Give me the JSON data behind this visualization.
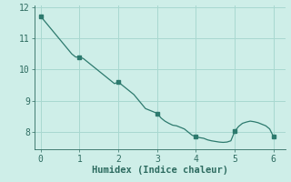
{
  "title": "",
  "xlabel": "Humidex (Indice chaleur)",
  "ylabel": "",
  "background_color": "#ceeee8",
  "line_color": "#2d7a6e",
  "grid_color": "#a8d8d0",
  "x": [
    0,
    0.1,
    0.2,
    0.3,
    0.4,
    0.5,
    0.6,
    0.7,
    0.8,
    0.9,
    1.0,
    1.1,
    1.2,
    1.3,
    1.4,
    1.5,
    1.6,
    1.7,
    1.8,
    1.9,
    2.0,
    2.1,
    2.2,
    2.3,
    2.4,
    2.5,
    2.6,
    2.7,
    2.8,
    2.9,
    3.0,
    3.1,
    3.2,
    3.3,
    3.4,
    3.5,
    3.6,
    3.7,
    3.8,
    3.9,
    4.0,
    4.1,
    4.2,
    4.3,
    4.4,
    4.5,
    4.6,
    4.7,
    4.8,
    4.9,
    5.0,
    5.1,
    5.2,
    5.3,
    5.4,
    5.5,
    5.6,
    5.7,
    5.8,
    5.9,
    6.0
  ],
  "y": [
    11.7,
    11.55,
    11.4,
    11.25,
    11.1,
    10.95,
    10.8,
    10.65,
    10.5,
    10.4,
    10.4,
    10.35,
    10.25,
    10.15,
    10.05,
    9.95,
    9.85,
    9.75,
    9.65,
    9.55,
    9.6,
    9.5,
    9.4,
    9.3,
    9.2,
    9.05,
    8.9,
    8.75,
    8.7,
    8.65,
    8.6,
    8.45,
    8.35,
    8.28,
    8.22,
    8.2,
    8.15,
    8.1,
    8.0,
    7.9,
    7.85,
    7.82,
    7.8,
    7.75,
    7.72,
    7.7,
    7.68,
    7.67,
    7.68,
    7.72,
    8.02,
    8.18,
    8.28,
    8.32,
    8.35,
    8.33,
    8.3,
    8.25,
    8.2,
    8.1,
    7.85
  ],
  "marker_x": [
    0,
    1,
    2,
    3,
    4,
    5,
    6
  ],
  "marker_y": [
    11.7,
    10.4,
    9.6,
    8.6,
    7.85,
    8.02,
    7.85
  ],
  "xlim": [
    -0.15,
    6.3
  ],
  "ylim": [
    7.45,
    12.05
  ],
  "xticks": [
    0,
    1,
    2,
    3,
    4,
    5,
    6
  ],
  "yticks": [
    8,
    9,
    10,
    11,
    12
  ],
  "font_color": "#2d6b60",
  "tick_fontsize": 7,
  "label_fontsize": 7.5
}
